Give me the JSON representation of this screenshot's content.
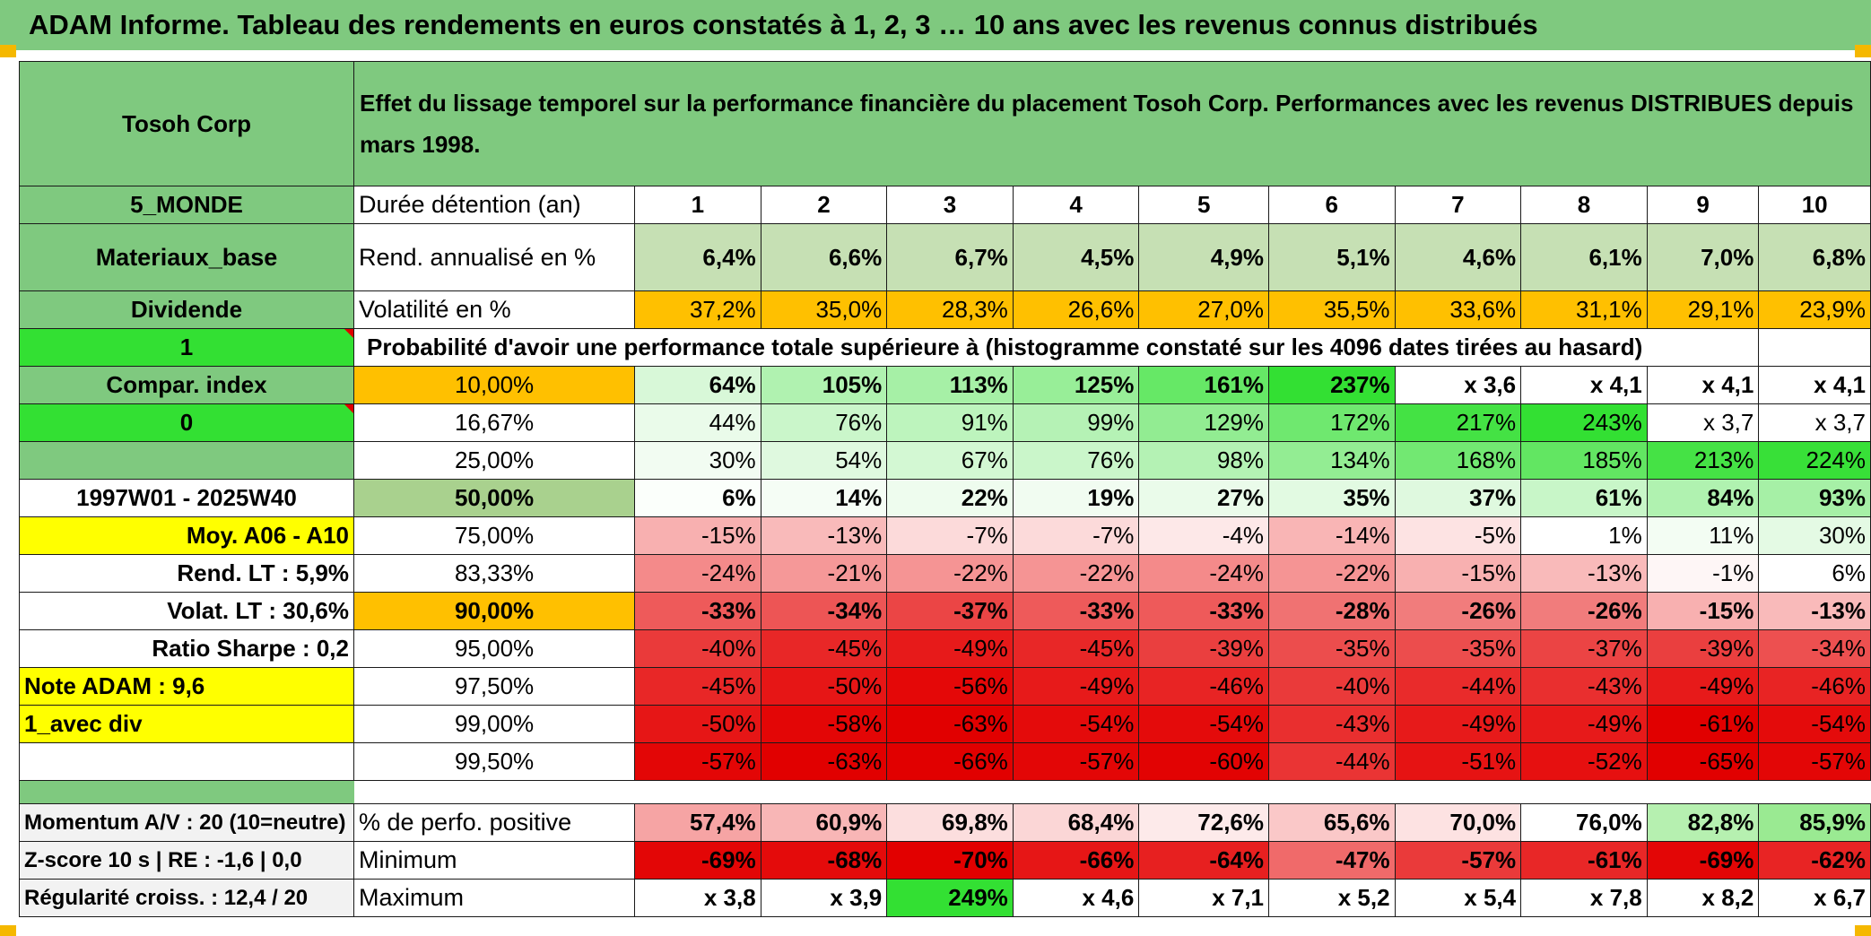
{
  "header_title": "ADAM Informe. Tableau des rendements en euros constatés à 1, 2, 3 … 10 ans avec les revenus connus distribués",
  "company": "Tosoh Corp",
  "description": "Effet du lissage temporel sur la performance financière du placement Tosoh Corp. Performances avec les revenus DISTRIBUES depuis mars 1998.",
  "side_labels": {
    "zone": "5_MONDE",
    "sector": "Materiaux_base",
    "dividend": "Dividende",
    "one": "1",
    "compar_index": "Compar. index",
    "zero": "0",
    "period": "1997W01 - 2025W40",
    "moy": "Moy. A06 - A10",
    "rend_lt": "Rend. LT :   5,9%",
    "volat_lt": "Volat. LT :   30,6%",
    "sharpe": "Ratio Sharpe :   0,2",
    "note": "Note ADAM : 9,6",
    "avec_div": "1_avec div",
    "momentum": "Momentum A/V : 20 (10=neutre)",
    "zscore": "Z-score 10 s | RE : -1,6 | 0,0",
    "regularite": "Régularité croiss. : 12,4 / 20"
  },
  "row_labels": {
    "duree": "Durée détention (an)",
    "rend": "Rend. annualisé en %",
    "volat": "Volatilité en %",
    "proba": "Probabilité d'avoir une performance totale supérieure à (histogramme constaté sur les 4096 dates tirées au hasard)",
    "perfo_pos": "% de perfo. positive",
    "minimum": "Minimum",
    "maximum": "Maximum"
  },
  "years": [
    "1",
    "2",
    "3",
    "4",
    "5",
    "6",
    "7",
    "8",
    "9",
    "10"
  ],
  "rend": [
    "6,4%",
    "6,6%",
    "6,7%",
    "4,5%",
    "4,9%",
    "5,1%",
    "4,6%",
    "6,1%",
    "7,0%",
    "6,8%"
  ],
  "volat": [
    "37,2%",
    "35,0%",
    "28,3%",
    "26,6%",
    "27,0%",
    "35,5%",
    "33,6%",
    "31,1%",
    "29,1%",
    "23,9%"
  ],
  "pct_rows": [
    {
      "label": "10,00%",
      "values": [
        "64%",
        "105%",
        "113%",
        "125%",
        "161%",
        "237%",
        "x 3,6",
        "x 4,1",
        "x 4,1",
        "x 4,1"
      ]
    },
    {
      "label": "16,67%",
      "values": [
        "44%",
        "76%",
        "91%",
        "99%",
        "129%",
        "172%",
        "217%",
        "243%",
        "x 3,7",
        "x 3,7"
      ]
    },
    {
      "label": "25,00%",
      "values": [
        "30%",
        "54%",
        "67%",
        "76%",
        "98%",
        "134%",
        "168%",
        "185%",
        "213%",
        "224%"
      ]
    },
    {
      "label": "50,00%",
      "values": [
        "6%",
        "14%",
        "22%",
        "19%",
        "27%",
        "35%",
        "37%",
        "61%",
        "84%",
        "93%"
      ]
    },
    {
      "label": "75,00%",
      "values": [
        "-15%",
        "-13%",
        "-7%",
        "-7%",
        "-4%",
        "-14%",
        "-5%",
        "1%",
        "11%",
        "30%"
      ]
    },
    {
      "label": "83,33%",
      "values": [
        "-24%",
        "-21%",
        "-22%",
        "-22%",
        "-24%",
        "-22%",
        "-15%",
        "-13%",
        "-1%",
        "6%"
      ]
    },
    {
      "label": "90,00%",
      "values": [
        "-33%",
        "-34%",
        "-37%",
        "-33%",
        "-33%",
        "-28%",
        "-26%",
        "-26%",
        "-15%",
        "-13%"
      ]
    },
    {
      "label": "95,00%",
      "values": [
        "-40%",
        "-45%",
        "-49%",
        "-45%",
        "-39%",
        "-35%",
        "-35%",
        "-37%",
        "-39%",
        "-34%"
      ]
    },
    {
      "label": "97,50%",
      "values": [
        "-45%",
        "-50%",
        "-56%",
        "-49%",
        "-46%",
        "-40%",
        "-44%",
        "-43%",
        "-49%",
        "-46%"
      ]
    },
    {
      "label": "99,00%",
      "values": [
        "-50%",
        "-58%",
        "-63%",
        "-54%",
        "-54%",
        "-43%",
        "-49%",
        "-49%",
        "-61%",
        "-54%"
      ]
    },
    {
      "label": "99,50%",
      "values": [
        "-57%",
        "-63%",
        "-66%",
        "-57%",
        "-60%",
        "-44%",
        "-51%",
        "-52%",
        "-65%",
        "-57%"
      ]
    }
  ],
  "perfo_pos": [
    "57,4%",
    "60,9%",
    "69,8%",
    "68,4%",
    "72,6%",
    "65,6%",
    "70,0%",
    "76,0%",
    "82,8%",
    "85,9%"
  ],
  "minimum": [
    "-69%",
    "-68%",
    "-70%",
    "-66%",
    "-64%",
    "-47%",
    "-57%",
    "-61%",
    "-69%",
    "-62%"
  ],
  "maximum": [
    "x 3,8",
    "x 3,9",
    "249%",
    "x 4,6",
    "x 7,1",
    "x 5,2",
    "x 5,4",
    "x 7,8",
    "x 8,2",
    "x 6,7"
  ],
  "colors": {
    "header_green": "#7fc97f",
    "lime": "#33e033",
    "yellow": "#ffff00",
    "orange": "#ffc000",
    "label_red": "#d40000"
  }
}
